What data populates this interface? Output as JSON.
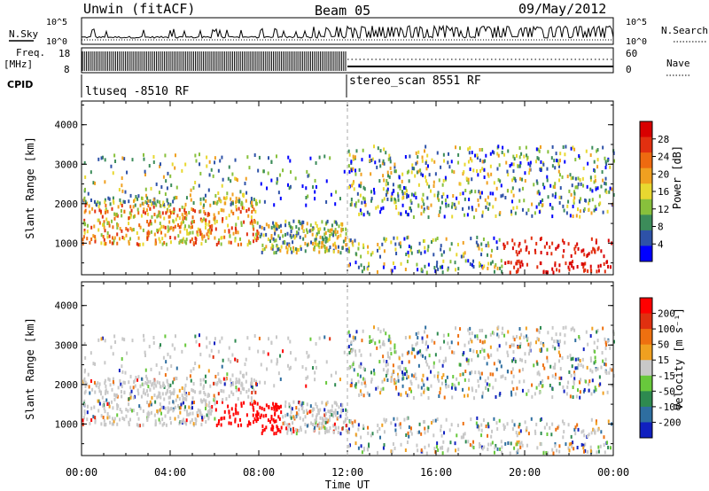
{
  "header": {
    "station": "Unwin (fitACF)",
    "beam": "Beam 05",
    "date": "09/May/2012"
  },
  "noise_panel": {
    "left_label": "N.Sky",
    "right_label": "N.Search",
    "tick_top": "10^5",
    "tick_bottom": "10^0"
  },
  "freq_panel": {
    "left_label_1": "Freq.",
    "left_label_2": "[MHz]",
    "right_label": "Nave",
    "left_ticks": [
      "18",
      "8"
    ],
    "right_ticks": [
      "60",
      "0"
    ]
  },
  "cpid": {
    "label": "CPID",
    "programs": [
      {
        "name": "ltuseq -8510 RF",
        "start_hour": 0
      },
      {
        "name": "stereo_scan 8551 RF",
        "start_hour": 12
      }
    ]
  },
  "chart_data": [
    {
      "type": "heatmap",
      "name": "power",
      "ylabel": "Slant Range [km]",
      "yticks": [
        "1000",
        "2000",
        "3000",
        "4000"
      ],
      "ylim": [
        200,
        4600
      ],
      "xlim": [
        0,
        24
      ],
      "colorbar": {
        "label": "Power [dB]",
        "ticks": [
          "4",
          "8",
          "12",
          "16",
          "20",
          "24",
          "28"
        ],
        "colors": [
          "#0000ff",
          "#2e52a8",
          "#3c8c5a",
          "#88c03c",
          "#e8d830",
          "#f0a020",
          "#ee6a10",
          "#e23010",
          "#d80000"
        ]
      }
    },
    {
      "type": "heatmap",
      "name": "velocity",
      "ylabel": "Slant Range [km]",
      "yticks": [
        "1000",
        "2000",
        "3000",
        "4000"
      ],
      "ylim": [
        200,
        4600
      ],
      "xlim": [
        0,
        24
      ],
      "colorbar": {
        "label": "Velocity [m s⁻¹]",
        "ticks": [
          "200",
          "100",
          "50",
          "15",
          "-15",
          "-50",
          "-100",
          "-200"
        ],
        "colors": [
          "#1020c0",
          "#2e6ea0",
          "#2e8a50",
          "#68c83c",
          "#c8c8c8",
          "#f0a020",
          "#ee7010",
          "#e03010",
          "#ff0000"
        ]
      }
    }
  ],
  "xaxis": {
    "label": "Time UT",
    "ticks": [
      "00:00",
      "04:00",
      "08:00",
      "12:00",
      "16:00",
      "20:00",
      "00:00"
    ]
  }
}
